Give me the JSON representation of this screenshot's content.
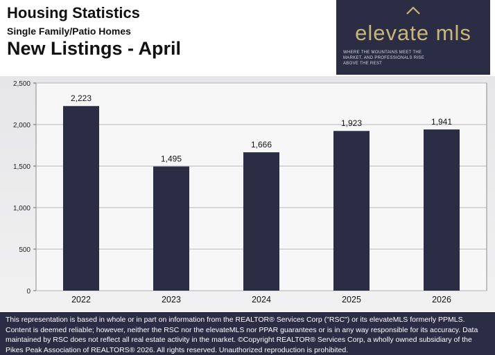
{
  "header": {
    "title": "Housing Statistics",
    "subtitle": "Single Family/Patio Homes",
    "chart_title": "New Listings - April"
  },
  "logo": {
    "icon": "mountain-chevron-icon",
    "name": "elevate mls",
    "tagline": "WHERE THE MOUNTAINS MEET THE MARKET, AND PROFESSIONALS RISE ABOVE THE REST"
  },
  "colors": {
    "bar": "#2b2d45",
    "footer_bg": "#2b2d45",
    "logo_text": "#c9b67a"
  },
  "chart_data": {
    "type": "bar",
    "categories": [
      "2022",
      "2023",
      "2024",
      "2025",
      "2026"
    ],
    "values": [
      2223,
      1495,
      1666,
      1923,
      1941
    ],
    "value_labels": [
      "2,223",
      "1,495",
      "1,666",
      "1,923",
      "1,941"
    ],
    "ylim": [
      0,
      2500
    ],
    "yticks": [
      0,
      500,
      1000,
      1500,
      2000,
      2500
    ],
    "ytick_labels": [
      "0",
      "500",
      "1,000",
      "1,500",
      "2,000",
      "2,500"
    ],
    "grid": true,
    "legend": false
  },
  "footer": {
    "disclaimer": "This representation is based in whole or in part on information from the REALTOR® Services Corp (\"RSC\") or its elevateMLS formerly PPMLS. Content is deemed reliable; however, neither the RSC nor the elevateMLS nor PPAR guarantees or is in any way responsible for its accuracy. Data maintained by RSC does not reflect all real estate activity in the market. ©Copyright REALTOR® Services Corp, a wholly owned subsidiary of the Pikes Peak Association of REALTORS® 2026. All rights reserved. Unauthorized reproduction is prohibited."
  }
}
